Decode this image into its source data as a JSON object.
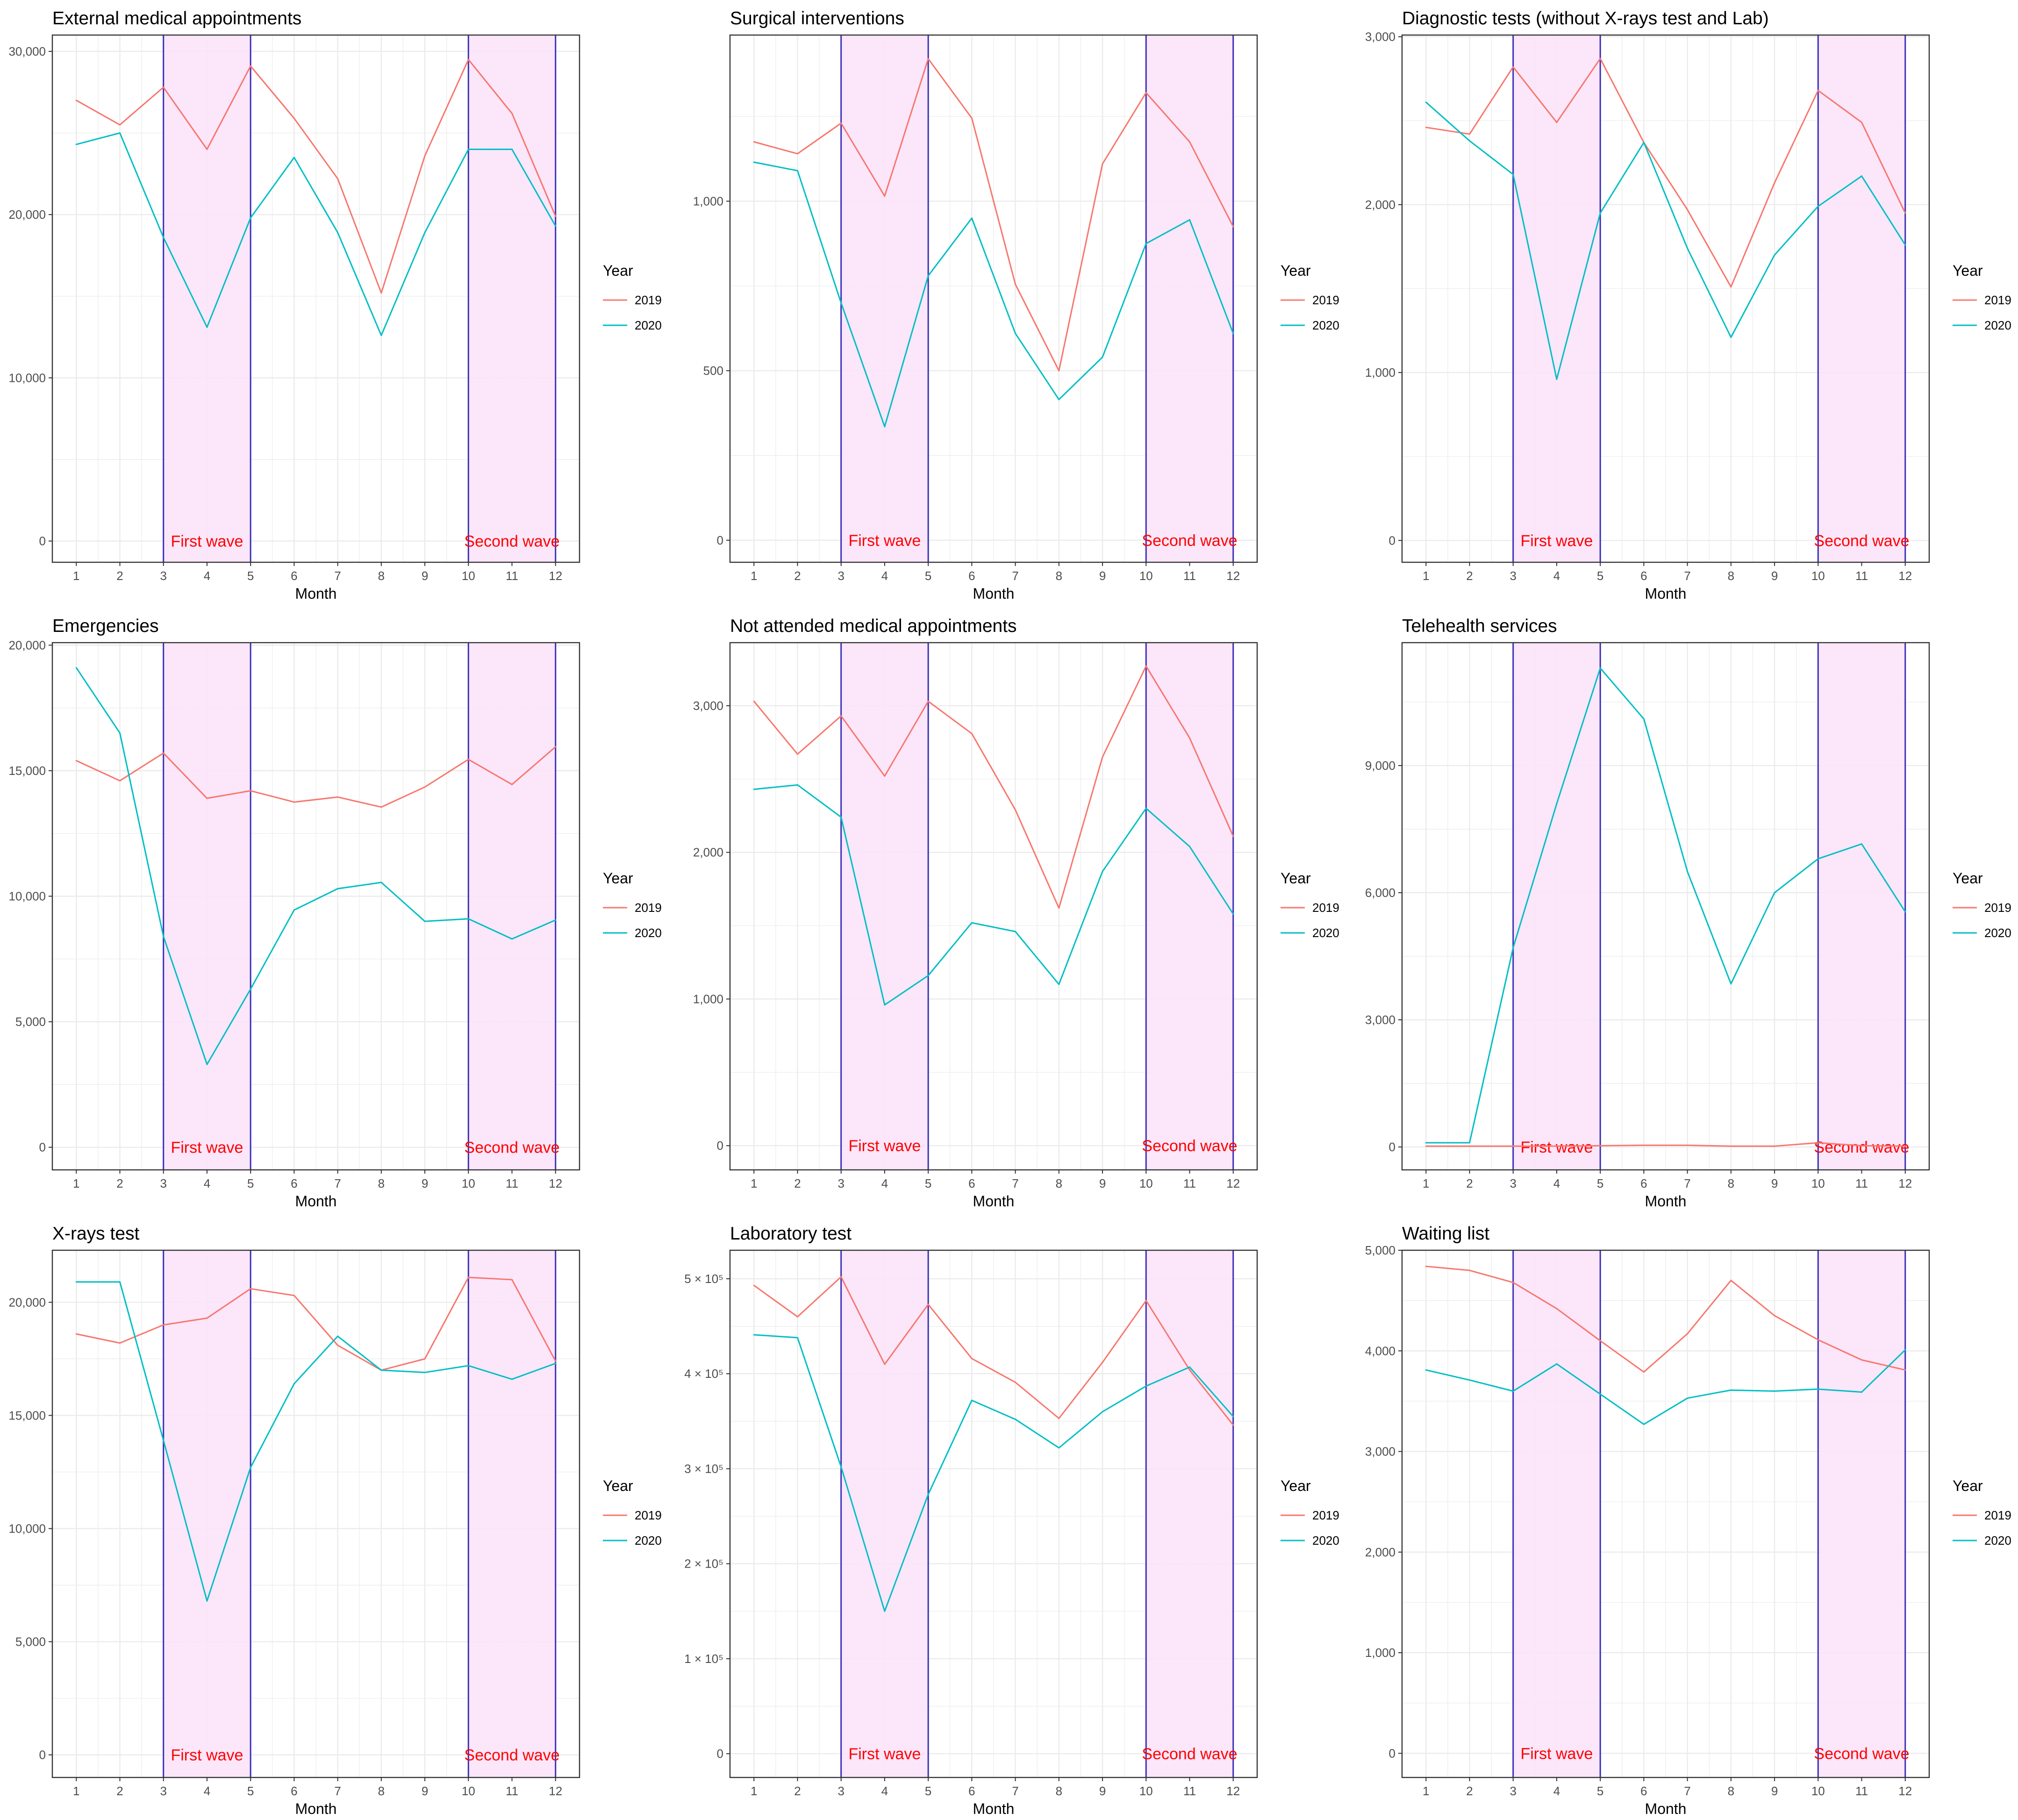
{
  "colors": {
    "y2019": "#F8766D",
    "y2020": "#00BFC4",
    "wave_fill": "#FBE3FA",
    "wave_border": "#3A2FB8",
    "wave_text": "#FF0000",
    "grid": "#EBEBEB",
    "panel_border": "#333333"
  },
  "legend": {
    "title": "Year",
    "entries": [
      "2019",
      "2020"
    ]
  },
  "waves": [
    {
      "label": "First wave",
      "from": 3,
      "to": 5
    },
    {
      "label": "Second wave",
      "from": 10,
      "to": 12
    }
  ],
  "chart_data": [
    {
      "type": "line",
      "title": "External medical appointments",
      "xlabel": "Month",
      "ylabel": "",
      "x": [
        1,
        2,
        3,
        4,
        5,
        6,
        7,
        8,
        9,
        10,
        11,
        12
      ],
      "xlim": [
        0.45,
        12.55
      ],
      "ylim": [
        -1300,
        31000
      ],
      "yticks": [
        0,
        10000,
        20000,
        30000
      ],
      "ytick_labels": [
        "0",
        "10,000",
        "20,000",
        "30,000"
      ],
      "grid": true,
      "legend": "right",
      "series": [
        {
          "name": "2019",
          "values": [
            27000,
            25500,
            27800,
            24000,
            29100,
            25900,
            22200,
            15200,
            23600,
            29500,
            26200,
            19900
          ]
        },
        {
          "name": "2020",
          "values": [
            24300,
            25000,
            18600,
            13100,
            19800,
            23500,
            18900,
            12600,
            18900,
            24000,
            24000,
            19300
          ]
        }
      ]
    },
    {
      "type": "line",
      "title": "Surgical interventions",
      "xlabel": "Month",
      "ylabel": "",
      "x": [
        1,
        2,
        3,
        4,
        5,
        6,
        7,
        8,
        9,
        10,
        11,
        12
      ],
      "xlim": [
        0.45,
        12.55
      ],
      "ylim": [
        -65,
        1490
      ],
      "yticks": [
        0,
        500,
        1000
      ],
      "ytick_labels": [
        "0",
        "500",
        "1,000"
      ],
      "grid": true,
      "legend": "right",
      "series": [
        {
          "name": "2019",
          "values": [
            1175,
            1140,
            1230,
            1015,
            1420,
            1245,
            755,
            500,
            1110,
            1320,
            1175,
            925
          ]
        },
        {
          "name": "2020",
          "values": [
            1115,
            1090,
            700,
            335,
            780,
            950,
            610,
            415,
            540,
            875,
            945,
            610
          ]
        }
      ]
    },
    {
      "type": "line",
      "title": "Diagnostic tests (without X-rays test and Lab)",
      "xlabel": "Month",
      "ylabel": "",
      "x": [
        1,
        2,
        3,
        4,
        5,
        6,
        7,
        8,
        9,
        10,
        11,
        12
      ],
      "xlim": [
        0.45,
        12.55
      ],
      "ylim": [
        -130,
        3010
      ],
      "yticks": [
        0,
        1000,
        2000,
        3000
      ],
      "ytick_labels": [
        "0",
        "1,000",
        "2,000",
        "3,000"
      ],
      "grid": true,
      "legend": "right",
      "series": [
        {
          "name": "2019",
          "values": [
            2460,
            2420,
            2820,
            2490,
            2870,
            2370,
            1970,
            1510,
            2130,
            2680,
            2490,
            1950
          ]
        },
        {
          "name": "2020",
          "values": [
            2610,
            2380,
            2180,
            960,
            1950,
            2370,
            1740,
            1210,
            1700,
            1990,
            2170,
            1760
          ]
        }
      ]
    },
    {
      "type": "line",
      "title": "Emergencies",
      "xlabel": "Month",
      "ylabel": "",
      "x": [
        1,
        2,
        3,
        4,
        5,
        6,
        7,
        8,
        9,
        10,
        11,
        12
      ],
      "xlim": [
        0.45,
        12.55
      ],
      "ylim": [
        -900,
        20100
      ],
      "yticks": [
        0,
        5000,
        10000,
        15000,
        20000
      ],
      "ytick_labels": [
        "0",
        "5,000",
        "10,000",
        "15,000",
        "20,000"
      ],
      "grid": true,
      "legend": "right",
      "series": [
        {
          "name": "2019",
          "values": [
            15400,
            14600,
            15700,
            13900,
            14200,
            13750,
            13950,
            13550,
            14350,
            15450,
            14450,
            15950
          ]
        },
        {
          "name": "2020",
          "values": [
            19100,
            16500,
            8400,
            3300,
            6300,
            9450,
            10300,
            10550,
            9000,
            9100,
            8300,
            9050
          ]
        }
      ]
    },
    {
      "type": "line",
      "title": "Not attended medical appointments",
      "xlabel": "Month",
      "ylabel": "",
      "x": [
        1,
        2,
        3,
        4,
        5,
        6,
        7,
        8,
        9,
        10,
        11,
        12
      ],
      "xlim": [
        0.45,
        12.55
      ],
      "ylim": [
        -165,
        3430
      ],
      "yticks": [
        0,
        1000,
        2000,
        3000
      ],
      "ytick_labels": [
        "0",
        "1,000",
        "2,000",
        "3,000"
      ],
      "grid": true,
      "legend": "right",
      "series": [
        {
          "name": "2019",
          "values": [
            3030,
            2670,
            2930,
            2520,
            3030,
            2810,
            2290,
            1620,
            2650,
            3270,
            2780,
            2110
          ]
        },
        {
          "name": "2020",
          "values": [
            2430,
            2460,
            2240,
            960,
            1160,
            1520,
            1460,
            1100,
            1870,
            2300,
            2040,
            1580
          ]
        }
      ]
    },
    {
      "type": "line",
      "title": "Telehealth services",
      "xlabel": "Month",
      "ylabel": "",
      "x": [
        1,
        2,
        3,
        4,
        5,
        6,
        7,
        8,
        9,
        10,
        11,
        12
      ],
      "xlim": [
        0.45,
        12.55
      ],
      "ylim": [
        -540,
        11900
      ],
      "yticks": [
        0,
        3000,
        6000,
        9000
      ],
      "ytick_labels": [
        "0",
        "3,000",
        "6,000",
        "9,000"
      ],
      "grid": true,
      "legend": "right",
      "series": [
        {
          "name": "2019",
          "values": [
            20,
            20,
            20,
            20,
            30,
            40,
            40,
            20,
            20,
            100,
            30,
            20
          ]
        },
        {
          "name": "2020",
          "values": [
            100,
            100,
            4700,
            8100,
            11300,
            10100,
            6500,
            3850,
            6000,
            6800,
            7150,
            5550
          ]
        }
      ]
    },
    {
      "type": "line",
      "title": "X-rays test",
      "xlabel": "Month",
      "ylabel": "",
      "x": [
        1,
        2,
        3,
        4,
        5,
        6,
        7,
        8,
        9,
        10,
        11,
        12
      ],
      "xlim": [
        0.45,
        12.55
      ],
      "ylim": [
        -1000,
        22300
      ],
      "yticks": [
        0,
        5000,
        10000,
        15000,
        20000
      ],
      "ytick_labels": [
        "0",
        "5,000",
        "10,000",
        "15,000",
        "20,000"
      ],
      "grid": true,
      "legend": "right",
      "series": [
        {
          "name": "2019",
          "values": [
            18600,
            18200,
            19000,
            19300,
            20600,
            20300,
            18100,
            17000,
            17500,
            21100,
            21000,
            17400
          ]
        },
        {
          "name": "2020",
          "values": [
            20900,
            20900,
            13900,
            6800,
            12700,
            16400,
            18500,
            17000,
            16900,
            17200,
            16600,
            17300
          ]
        }
      ]
    },
    {
      "type": "line",
      "title": "Laboratory test",
      "xlabel": "Month",
      "ylabel": "",
      "x": [
        1,
        2,
        3,
        4,
        5,
        6,
        7,
        8,
        9,
        10,
        11,
        12
      ],
      "xlim": [
        0.45,
        12.55
      ],
      "ylim": [
        -25000,
        530000
      ],
      "yticks": [
        0,
        100000,
        200000,
        300000,
        400000,
        500000
      ],
      "ytick_labels": [
        "0",
        "1 × 10⁵",
        "2 × 10⁵",
        "3 × 10⁵",
        "4 × 10⁵",
        "5 × 10⁵"
      ],
      "grid": true,
      "legend": "right",
      "series": [
        {
          "name": "2019",
          "values": [
            493000,
            460000,
            502000,
            410000,
            473000,
            416000,
            391000,
            353000,
            412000,
            477000,
            404000,
            346000
          ]
        },
        {
          "name": "2020",
          "values": [
            441000,
            438000,
            302000,
            150000,
            273000,
            372000,
            352000,
            322000,
            360000,
            387000,
            407000,
            355000
          ]
        }
      ]
    },
    {
      "type": "line",
      "title": "Waiting list",
      "xlabel": "Month",
      "ylabel": "",
      "x": [
        1,
        2,
        3,
        4,
        5,
        6,
        7,
        8,
        9,
        10,
        11,
        12
      ],
      "xlim": [
        0.45,
        12.55
      ],
      "ylim": [
        -240,
        5000
      ],
      "yticks": [
        0,
        1000,
        2000,
        3000,
        4000,
        5000
      ],
      "ytick_labels": [
        "0",
        "1,000",
        "2,000",
        "3,000",
        "4,000",
        "5,000"
      ],
      "grid": true,
      "legend": "right",
      "series": [
        {
          "name": "2019",
          "values": [
            4840,
            4800,
            4680,
            4420,
            4100,
            3790,
            4170,
            4700,
            4350,
            4110,
            3910,
            3810
          ]
        },
        {
          "name": "2020",
          "values": [
            3810,
            3710,
            3600,
            3870,
            3570,
            3270,
            3530,
            3610,
            3600,
            3620,
            3590,
            4010
          ]
        }
      ]
    }
  ]
}
